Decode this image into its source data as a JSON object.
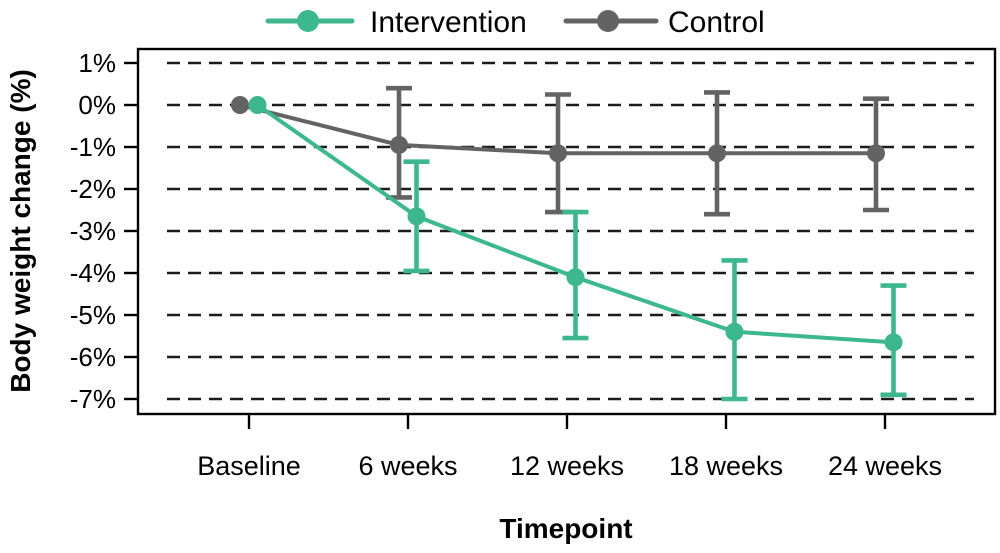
{
  "chart_data": {
    "type": "line",
    "title": "",
    "xlabel": "Timepoint",
    "ylabel": "Body weight change (%)",
    "categories": [
      "Baseline",
      "6 weeks",
      "12 weeks",
      "18 weeks",
      "24 weeks"
    ],
    "y_ticks": [
      1,
      0,
      -1,
      -2,
      -3,
      -4,
      -5,
      -6,
      -7
    ],
    "y_tick_labels": [
      "1%",
      "0%",
      "-1%",
      "-2%",
      "-3%",
      "-4%",
      "-5%",
      "-6%",
      "-7%"
    ],
    "ylim": [
      1.35,
      -7.35
    ],
    "grid": "dashed-horizontal",
    "legend_position": "top-center",
    "background_color": "#ffffff",
    "grid_color": "#1c1c1c",
    "axis_color": "#000000",
    "series": [
      {
        "name": "Intervention",
        "color": "#3cb78e",
        "values": [
          0,
          -2.65,
          -4.1,
          -5.4,
          -5.65
        ],
        "ci_upper": [
          null,
          -1.35,
          -2.55,
          -3.7,
          -4.3
        ],
        "ci_lower": [
          null,
          -3.95,
          -5.55,
          -7.0,
          -6.9
        ]
      },
      {
        "name": "Control",
        "color": "#636363",
        "values": [
          0,
          -0.95,
          -1.15,
          -1.15,
          -1.15
        ],
        "ci_upper": [
          null,
          0.4,
          0.25,
          0.3,
          0.15
        ],
        "ci_lower": [
          null,
          -2.2,
          -2.55,
          -2.6,
          -2.5
        ]
      }
    ]
  }
}
